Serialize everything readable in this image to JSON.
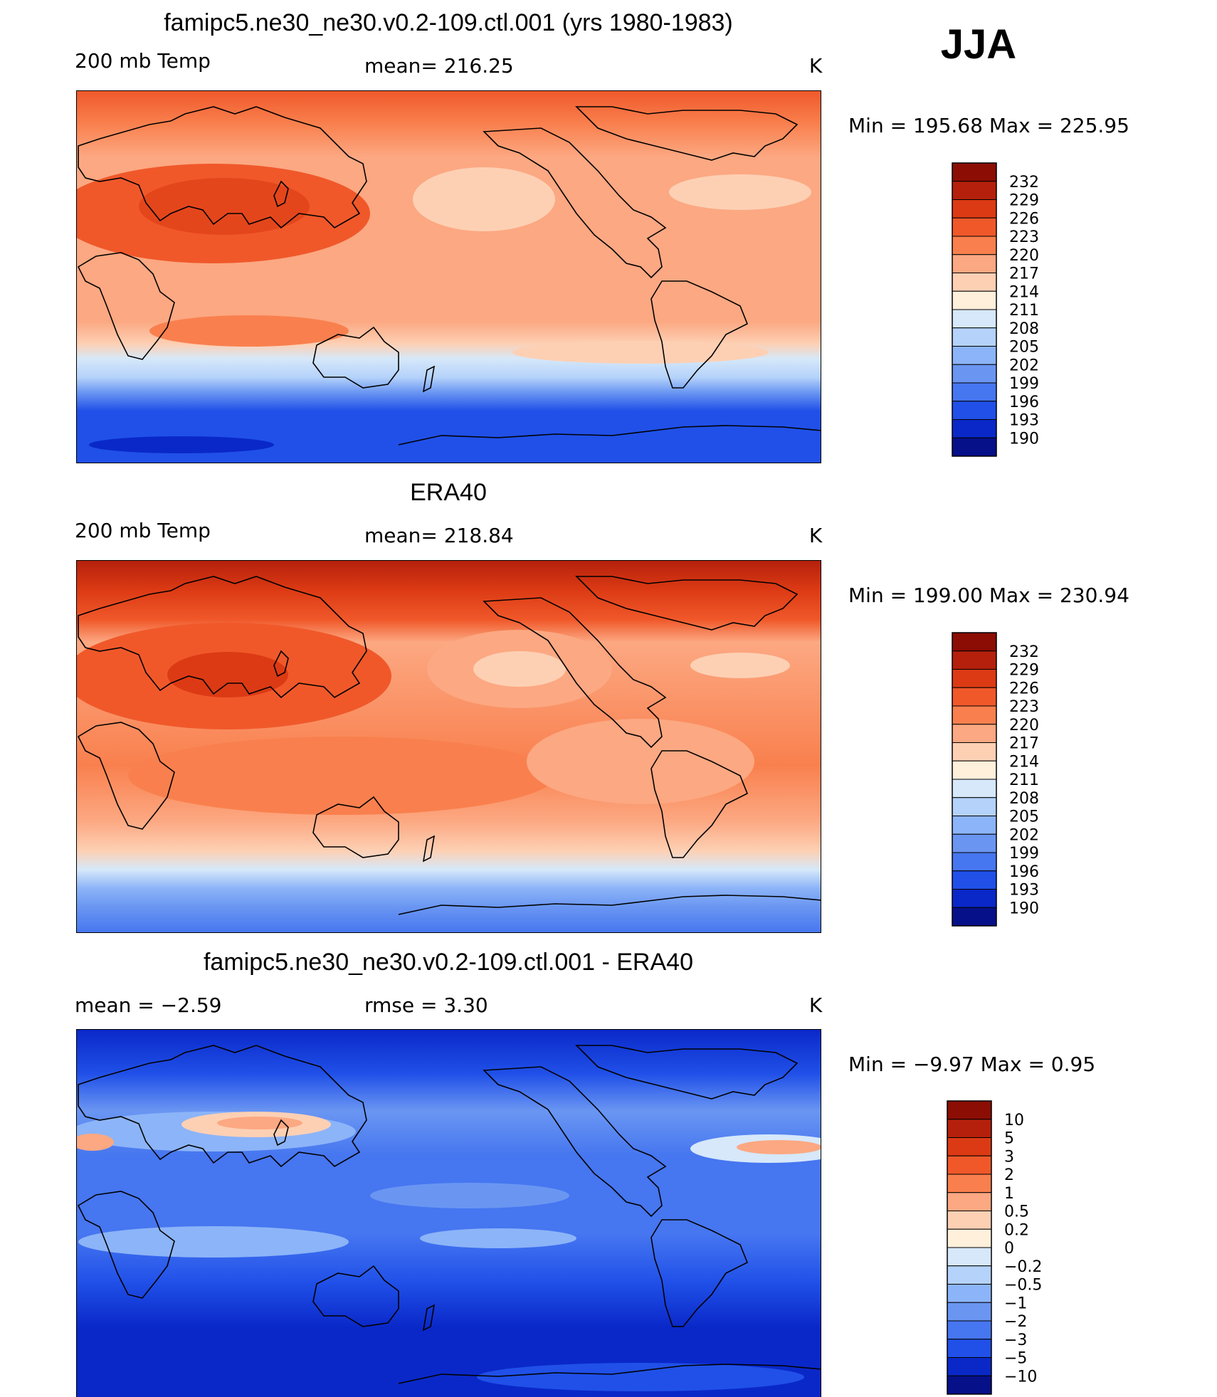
{
  "season": "JJA",
  "chart_data": [
    {
      "type": "heatmap",
      "title": "famipc5.ne30_ne30.v0.2-109.ctl.001 (yrs 1980-1983)",
      "left_label": "200 mb Temp",
      "center_label": "mean=  216.25",
      "units": "K",
      "range_label": "Min  =  195.68  Max  =  225.95",
      "min": 195.68,
      "max": 225.95,
      "mean": 216.25,
      "legend_levels": [
        "232",
        "229",
        "226",
        "223",
        "220",
        "217",
        "214",
        "211",
        "208",
        "205",
        "202",
        "199",
        "196",
        "193",
        "190"
      ],
      "legend_colors": [
        "#8c0d04",
        "#b4200c",
        "#dc3a14",
        "#f0582a",
        "#f9804e",
        "#fca882",
        "#fdd0b4",
        "#fff0dc",
        "#d6e8fa",
        "#b4d2fa",
        "#8cb4f8",
        "#6a96f2",
        "#4676f0",
        "#2050e8",
        "#0a28c8",
        "#061088"
      ]
    },
    {
      "type": "heatmap",
      "title": "ERA40",
      "left_label": "200 mb Temp",
      "center_label": "mean=  218.84",
      "units": "K",
      "range_label": "Min  =  199.00  Max  =  230.94",
      "min": 199.0,
      "max": 230.94,
      "mean": 218.84,
      "legend_levels": [
        "232",
        "229",
        "226",
        "223",
        "220",
        "217",
        "214",
        "211",
        "208",
        "205",
        "202",
        "199",
        "196",
        "193",
        "190"
      ],
      "legend_colors": [
        "#8c0d04",
        "#b4200c",
        "#dc3a14",
        "#f0582a",
        "#f9804e",
        "#fca882",
        "#fdd0b4",
        "#fff0dc",
        "#d6e8fa",
        "#b4d2fa",
        "#8cb4f8",
        "#6a96f2",
        "#4676f0",
        "#2050e8",
        "#0a28c8",
        "#061088"
      ]
    },
    {
      "type": "heatmap",
      "title": "famipc5.ne30_ne30.v0.2-109.ctl.001 - ERA40",
      "left_label": "mean  =     −2.59",
      "center_label": "rmse  =     3.30",
      "units": "K",
      "range_label": "Min  =    −9.97  Max  =      0.95",
      "min": -9.97,
      "max": 0.95,
      "mean": -2.59,
      "rmse": 3.3,
      "legend_levels": [
        "10",
        "5",
        "3",
        "2",
        "1",
        "0.5",
        "0.2",
        "0",
        "−0.2",
        "−0.5",
        "−1",
        "−2",
        "−3",
        "−5",
        "−10"
      ],
      "legend_colors": [
        "#8c0d04",
        "#b4200c",
        "#dc3a14",
        "#f0582a",
        "#f9804e",
        "#fca882",
        "#fdd0b4",
        "#fff0dc",
        "#d6e8fa",
        "#b4d2fa",
        "#8cb4f8",
        "#6a96f2",
        "#4676f0",
        "#2050e8",
        "#0a28c8",
        "#061088"
      ]
    }
  ]
}
